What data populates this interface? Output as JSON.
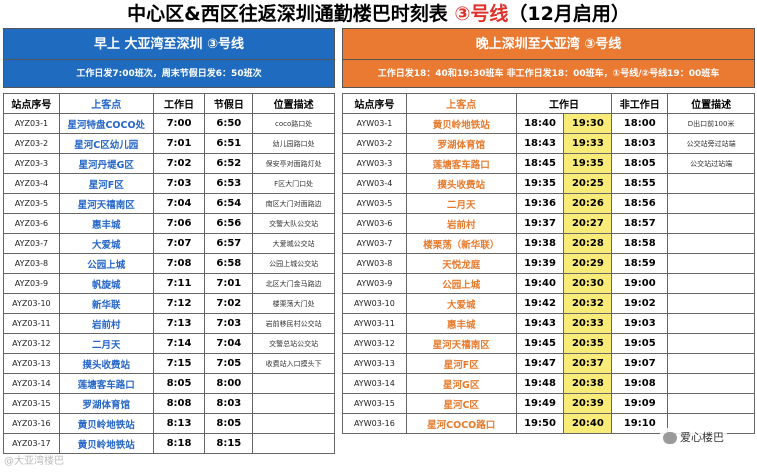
{
  "title": {
    "prefix": "中心区&西区往返深圳通勤楼巴时刻表 ",
    "line": "③号线",
    "suffix": "（12月启用）"
  },
  "left": {
    "header": "早上 大亚湾至深圳 ③号线",
    "subheader": "工作日发7:00班次，周末节假日发6：50班次",
    "columns": [
      "站点序号",
      "上客点",
      "工作日",
      "节假日",
      "位置描述"
    ],
    "rows": [
      [
        "AYZ03-1",
        "星河特盘COCO处",
        "7:00",
        "6:50",
        "coco路口处"
      ],
      [
        "AYZ03-2",
        "星河C区幼儿园",
        "7:01",
        "6:51",
        "幼儿园路口处"
      ],
      [
        "AYZ03-3",
        "星河丹堤G区",
        "7:02",
        "6:52",
        "保安亭对面路灯处"
      ],
      [
        "AYZ03-4",
        "星河F区",
        "7:03",
        "6:53",
        "F区大门口处"
      ],
      [
        "AYZ03-5",
        "星河天禧南区",
        "7:04",
        "6:54",
        "南区大门对面路边"
      ],
      [
        "AYZ03-6",
        "惠丰城",
        "7:06",
        "6:56",
        "交警大队公交站"
      ],
      [
        "AYZ03-7",
        "大爱城",
        "7:07",
        "6:57",
        "大爱城公交站"
      ],
      [
        "AYZ03-8",
        "公园上城",
        "7:08",
        "6:58",
        "公园上城公交站"
      ],
      [
        "AYZ03-9",
        "帆旋城",
        "7:11",
        "7:01",
        "北区大门金马路边"
      ],
      [
        "AYZ03-10",
        "新华联",
        "7:12",
        "7:02",
        "楼栗荡大门处"
      ],
      [
        "AYZ03-11",
        "岩前村",
        "7:13",
        "7:03",
        "岩前移民村公交站"
      ],
      [
        "AYZ03-12",
        "二月天",
        "7:14",
        "7:04",
        "交警总站公交站"
      ],
      [
        "AYZ03-13",
        "摸头收费站",
        "7:15",
        "7:05",
        "收费站入口摸头下"
      ],
      [
        "AYZ03-14",
        "莲塘客车路口",
        "8:05",
        "8:00",
        ""
      ],
      [
        "AYZ03-15",
        "罗湖体育馆",
        "8:08",
        "8:03",
        ""
      ],
      [
        "AYZ03-16",
        "黄贝岭地铁站",
        "8:13",
        "8:05",
        ""
      ],
      [
        "AYZ03-17",
        "黄贝岭地铁站",
        "8:18",
        "8:15",
        ""
      ]
    ]
  },
  "right": {
    "header": "晚上深圳至大亚湾  ③号线",
    "subheader": "工作日发18：40和19:30班车   非工作日发18：00班车，①号线/②号线19：00班车",
    "columns": [
      "站点序号",
      "上客点",
      "工作日",
      "非工作日",
      "位置描述"
    ],
    "rows": [
      [
        "AYW03-1",
        "黄贝岭地铁站",
        "18:40",
        "19:30",
        "18:00",
        "D出口前100米"
      ],
      [
        "AYW03-2",
        "罗湖体育馆",
        "18:43",
        "19:33",
        "18:03",
        "公交站旁过站端"
      ],
      [
        "AYW03-3",
        "莲塘客车路口",
        "18:45",
        "19:35",
        "18:05",
        "公交站过站端"
      ],
      [
        "AYW03-4",
        "摸头收费站",
        "19:35",
        "20:25",
        "18:55",
        ""
      ],
      [
        "AYW03-5",
        "二月天",
        "19:36",
        "20:26",
        "18:56",
        ""
      ],
      [
        "AYW03-6",
        "岩前村",
        "19:37",
        "20:27",
        "18:57",
        ""
      ],
      [
        "AYW03-7",
        "楼栗荡（新华联）",
        "19:38",
        "20:28",
        "18:58",
        ""
      ],
      [
        "AYW03-8",
        "天悦龙庭",
        "19:39",
        "20:29",
        "18:59",
        ""
      ],
      [
        "AYW03-9",
        "公园上城",
        "19:40",
        "20:30",
        "19:00",
        ""
      ],
      [
        "AYW03-10",
        "大爱城",
        "19:42",
        "20:32",
        "19:02",
        ""
      ],
      [
        "AYW03-11",
        "惠丰城",
        "19:43",
        "20:33",
        "19:03",
        ""
      ],
      [
        "AYW03-12",
        "星河天禧南区",
        "19:45",
        "20:35",
        "19:05",
        ""
      ],
      [
        "AYW03-13",
        "星河F区",
        "19:47",
        "20:37",
        "19:07",
        ""
      ],
      [
        "AYW03-14",
        "星河G区",
        "19:48",
        "20:38",
        "19:08",
        ""
      ],
      [
        "AYW03-15",
        "星河C区",
        "19:49",
        "20:39",
        "19:09",
        ""
      ],
      [
        "AYW03-16",
        "星河COCO路口",
        "19:50",
        "20:40",
        "19:10",
        ""
      ]
    ]
  },
  "watermark": "爱心楼巴",
  "watermark2": "@大亚湾楼巴",
  "colors": {
    "blue": "#1f6bc0",
    "orange": "#ea7a32",
    "highlight": "#f8eb78",
    "red": "#e0312b"
  }
}
